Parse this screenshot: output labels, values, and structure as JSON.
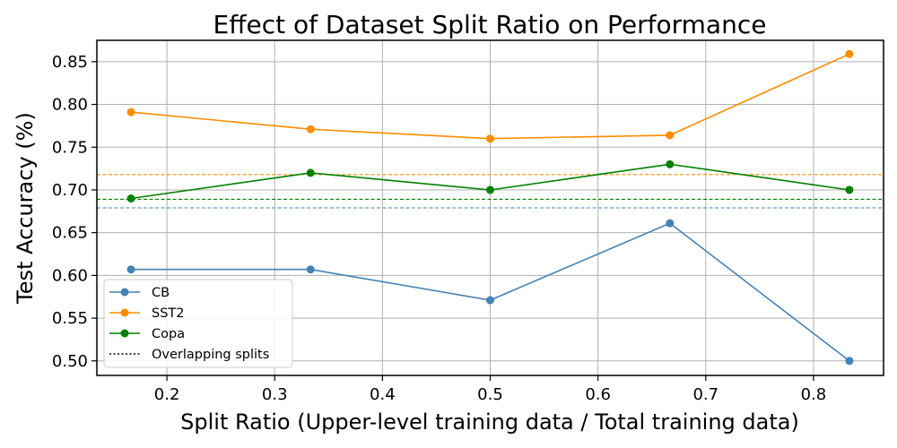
{
  "chart_data": {
    "type": "line",
    "title": "Effect of Dataset Split Ratio on Performance",
    "xlabel": "Split Ratio (Upper-level training data / Total training data)",
    "ylabel": "Test Accuracy (%)",
    "xlim": [
      0.135,
      0.865
    ],
    "ylim": [
      0.483,
      0.875
    ],
    "xticks": [
      0.2,
      0.3,
      0.4,
      0.5,
      0.6,
      0.7,
      0.8
    ],
    "xtick_labels": [
      "0.2",
      "0.3",
      "0.4",
      "0.5",
      "0.6",
      "0.7",
      "0.8"
    ],
    "yticks": [
      0.5,
      0.55,
      0.6,
      0.65,
      0.7,
      0.75,
      0.8,
      0.85
    ],
    "ytick_labels": [
      "0.50",
      "0.55",
      "0.60",
      "0.65",
      "0.70",
      "0.75",
      "0.80",
      "0.85"
    ],
    "grid": true,
    "x": [
      0.1667,
      0.3333,
      0.5,
      0.6667,
      0.8333
    ],
    "series": [
      {
        "name": "CB",
        "color": "#4682b4",
        "values": [
          0.607,
          0.607,
          0.571,
          0.661,
          0.5
        ],
        "baseline": 0.679
      },
      {
        "name": "SST2",
        "color": "#ff8c00",
        "values": [
          0.791,
          0.771,
          0.76,
          0.764,
          0.859
        ],
        "baseline": 0.718
      },
      {
        "name": "Copa",
        "color": "#008000",
        "values": [
          0.69,
          0.72,
          0.7,
          0.73,
          0.7
        ],
        "baseline": 0.689
      }
    ],
    "legend": {
      "placement": "lower-left",
      "entries": [
        "CB",
        "SST2",
        "Copa",
        "Overlapping splits"
      ],
      "overlap_label": "Overlapping splits"
    }
  }
}
